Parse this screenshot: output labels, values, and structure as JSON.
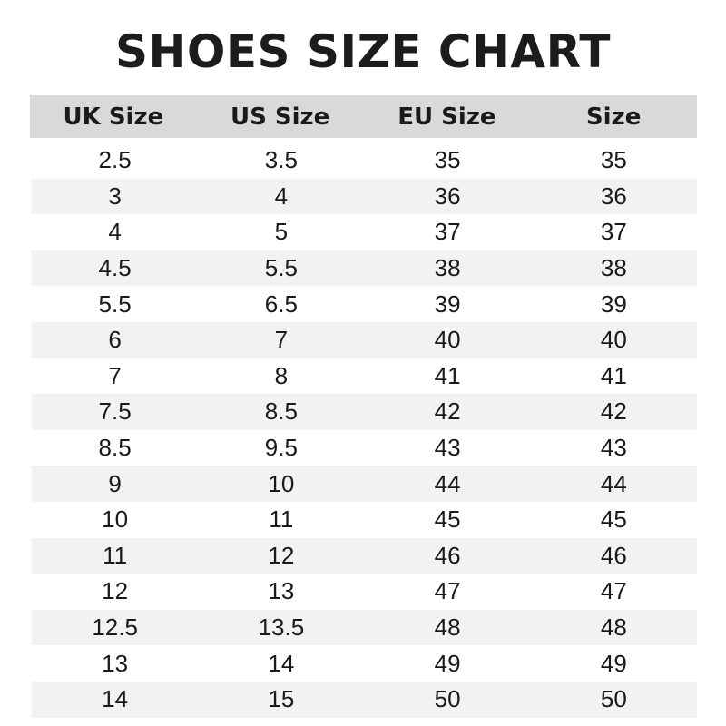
{
  "title": "SHOES SIZE CHART",
  "headers": [
    "UK Size",
    "US Size",
    "EU Size",
    "Size"
  ],
  "rows": [
    [
      "2.5",
      "3.5",
      "35",
      "35"
    ],
    [
      "3",
      "4",
      "36",
      "36"
    ],
    [
      "4",
      "5",
      "37",
      "37"
    ],
    [
      "4.5",
      "5.5",
      "38",
      "38"
    ],
    [
      "5.5",
      "6.5",
      "39",
      "39"
    ],
    [
      "6",
      "7",
      "40",
      "40"
    ],
    [
      "7",
      "8",
      "41",
      "41"
    ],
    [
      "7.5",
      "8.5",
      "42",
      "42"
    ],
    [
      "8.5",
      "9.5",
      "43",
      "43"
    ],
    [
      "9",
      "10",
      "44",
      "44"
    ],
    [
      "10",
      "11",
      "45",
      "45"
    ],
    [
      "11",
      "12",
      "46",
      "46"
    ],
    [
      "12",
      "13",
      "47",
      "47"
    ],
    [
      "12.5",
      "13.5",
      "48",
      "48"
    ],
    [
      "13",
      "14",
      "49",
      "49"
    ],
    [
      "14",
      "15",
      "50",
      "50"
    ]
  ],
  "colors": {
    "header_bg": "#d9d9d9",
    "stripe_bg": "#f2f2f2",
    "text": "#1a1a1a"
  }
}
